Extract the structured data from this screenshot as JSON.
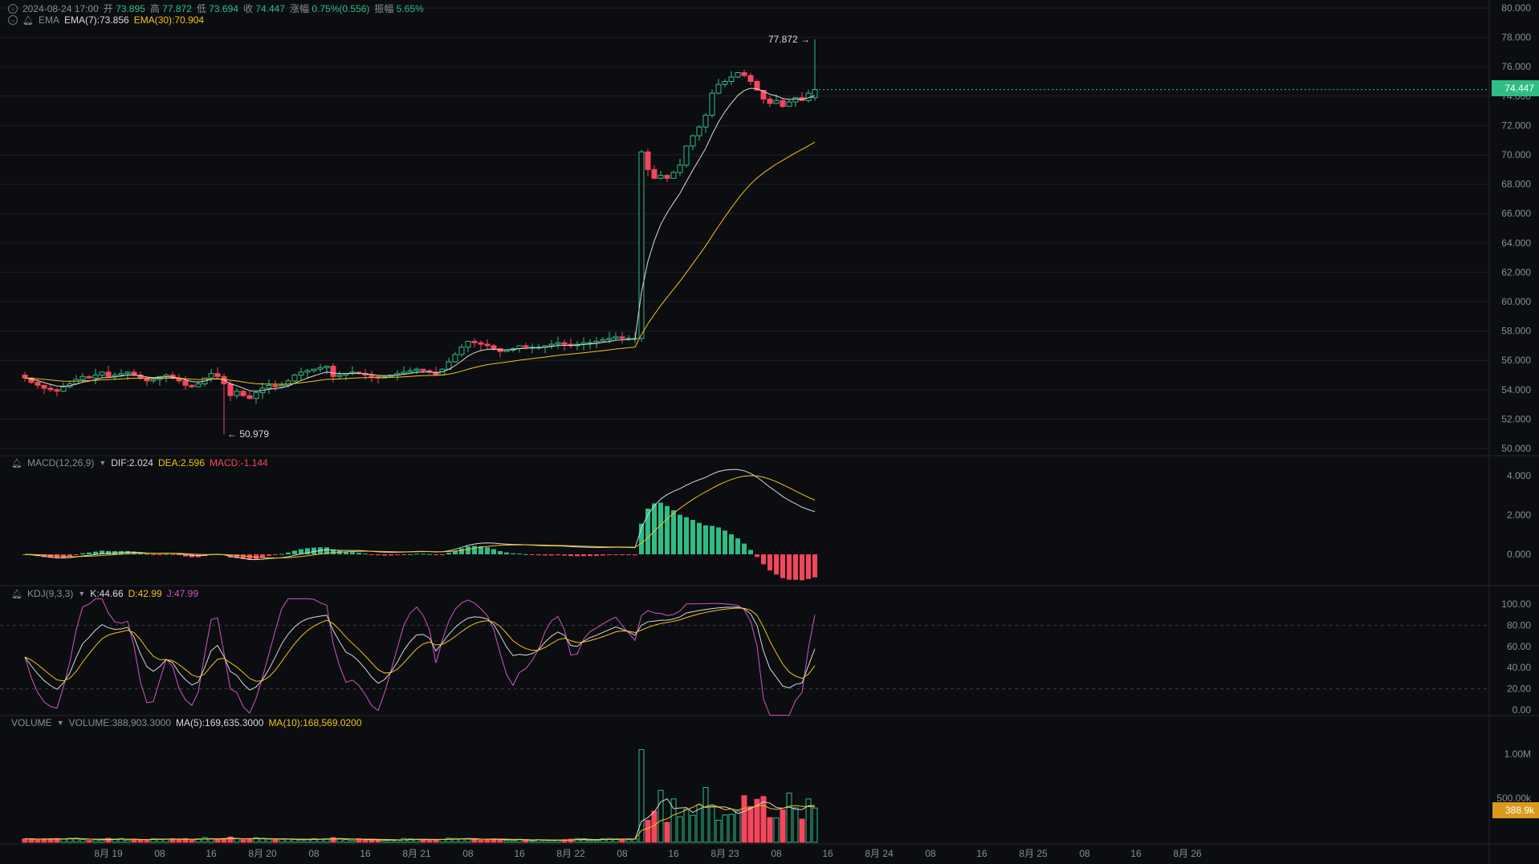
{
  "header": {
    "datetime": "2024-08-24 17:00",
    "open_label": "开",
    "open": "73.895",
    "high_label": "高",
    "high": "77.872",
    "low_label": "低",
    "low": "73.694",
    "close_label": "收",
    "close": "74.447",
    "change_label": "涨幅",
    "change": "0.75%(0.556)",
    "amp_label": "振幅",
    "amp": "5.65%"
  },
  "ema_header": {
    "name": "EMA",
    "ema7": "EMA(7):73.856",
    "ema30": "EMA(30):70.904"
  },
  "macd_header": {
    "name": "MACD(12,26,9)",
    "dif": "DIF:2.024",
    "dea": "DEA:2.596",
    "macd": "MACD:-1.144"
  },
  "kdj_header": {
    "name": "KDJ(9,3,3)",
    "k": "K:44.66",
    "d": "D:42.99",
    "j": "J:47.99"
  },
  "vol_header": {
    "name": "VOLUME",
    "vol": "VOLUME:388,903.3000",
    "ma5": "MA(5):169,635.3000",
    "ma10": "MA(10):168,569.0200"
  },
  "labels": {
    "current_price": "74.447",
    "current_volume": "388.9k",
    "max_marker": "77.872",
    "min_marker": "50.979"
  },
  "colors": {
    "up": "#2ebd85",
    "down": "#f6465d",
    "ema7": "#d9d9d9",
    "ema30": "#f0c419",
    "j": "#d055c4",
    "bg": "#0c0d10",
    "grid": "#1e2126",
    "axis_text": "#848e9c"
  },
  "chart_data": {
    "type": "candlestick",
    "interval": "1h",
    "y_ticks_price": [
      "80.000",
      "78.000",
      "76.000",
      "74.000",
      "72.000",
      "70.000",
      "68.000",
      "66.000",
      "64.000",
      "62.000",
      "60.000",
      "58.000",
      "56.000",
      "54.000",
      "52.000",
      "50.000"
    ],
    "y_ticks_macd": [
      "4.000",
      "2.000",
      "0.000"
    ],
    "y_ticks_kdj": [
      "100.00",
      "80.00",
      "60.00",
      "40.00",
      "20.00",
      "0.00"
    ],
    "y_ticks_volume": [
      "1.00M",
      "500.00k"
    ],
    "x_ticks": [
      {
        "label": "8月 19",
        "bar": 0
      },
      {
        "label": "08",
        "bar": 8
      },
      {
        "label": "16",
        "bar": 16
      },
      {
        "label": "8月 20",
        "bar": 24
      },
      {
        "label": "08",
        "bar": 32
      },
      {
        "label": "16",
        "bar": 40
      },
      {
        "label": "8月 21",
        "bar": 48
      },
      {
        "label": "08",
        "bar": 56
      },
      {
        "label": "16",
        "bar": 64
      },
      {
        "label": "8月 22",
        "bar": 72
      },
      {
        "label": "08",
        "bar": 80
      },
      {
        "label": "16",
        "bar": 88
      },
      {
        "label": "8月 23",
        "bar": 96
      },
      {
        "label": "08",
        "bar": 104
      },
      {
        "label": "16",
        "bar": 112
      },
      {
        "label": "8月 24",
        "bar": 120
      },
      {
        "label": "08",
        "bar": 128
      },
      {
        "label": "16",
        "bar": 136
      },
      {
        "label": "8月 25",
        "bar": 144
      },
      {
        "label": "08",
        "bar": 152
      },
      {
        "label": "16",
        "bar": 160
      },
      {
        "label": "8月 26",
        "bar": 168
      }
    ],
    "first_bar_index": -13,
    "closes": [
      54.8,
      54.5,
      54.3,
      54.1,
      54.0,
      53.9,
      54.2,
      54.4,
      54.7,
      54.9,
      54.8,
      55.0,
      55.2,
      54.9,
      55.0,
      55.1,
      55.2,
      55.0,
      54.8,
      54.6,
      54.7,
      54.9,
      55.0,
      54.8,
      54.6,
      54.3,
      54.2,
      54.4,
      54.8,
      55.1,
      54.9,
      54.4,
      53.6,
      53.9,
      53.6,
      53.4,
      53.8,
      54.1,
      54.3,
      54.2,
      54.3,
      54.6,
      55.0,
      55.2,
      55.3,
      55.4,
      55.5,
      55.6,
      54.9,
      55.0,
      55.1,
      55.2,
      55.1,
      55.0,
      54.9,
      54.8,
      54.9,
      55.0,
      55.1,
      55.2,
      55.3,
      55.4,
      55.3,
      55.2,
      55.0,
      55.4,
      55.9,
      56.4,
      56.9,
      57.3,
      57.2,
      57.1,
      57.0,
      56.8,
      56.6,
      56.7,
      56.8,
      57.0,
      56.9,
      56.9,
      56.9,
      57.0,
      57.1,
      57.2,
      57.1,
      57.0,
      57.1,
      57.2,
      57.2,
      57.3,
      57.4,
      57.5,
      57.6,
      57.5,
      57.5,
      57.5,
      70.2,
      69.0,
      68.4,
      68.6,
      68.4,
      68.8,
      69.3,
      70.6,
      71.3,
      71.9,
      72.7,
      74.2,
      74.8,
      75.0,
      75.3,
      75.6,
      75.4,
      75.0,
      74.4,
      73.8,
      73.5,
      73.7,
      73.3,
      73.6,
      73.9,
      73.7,
      74.2,
      74.447
    ],
    "volume_scale": "k"
  }
}
